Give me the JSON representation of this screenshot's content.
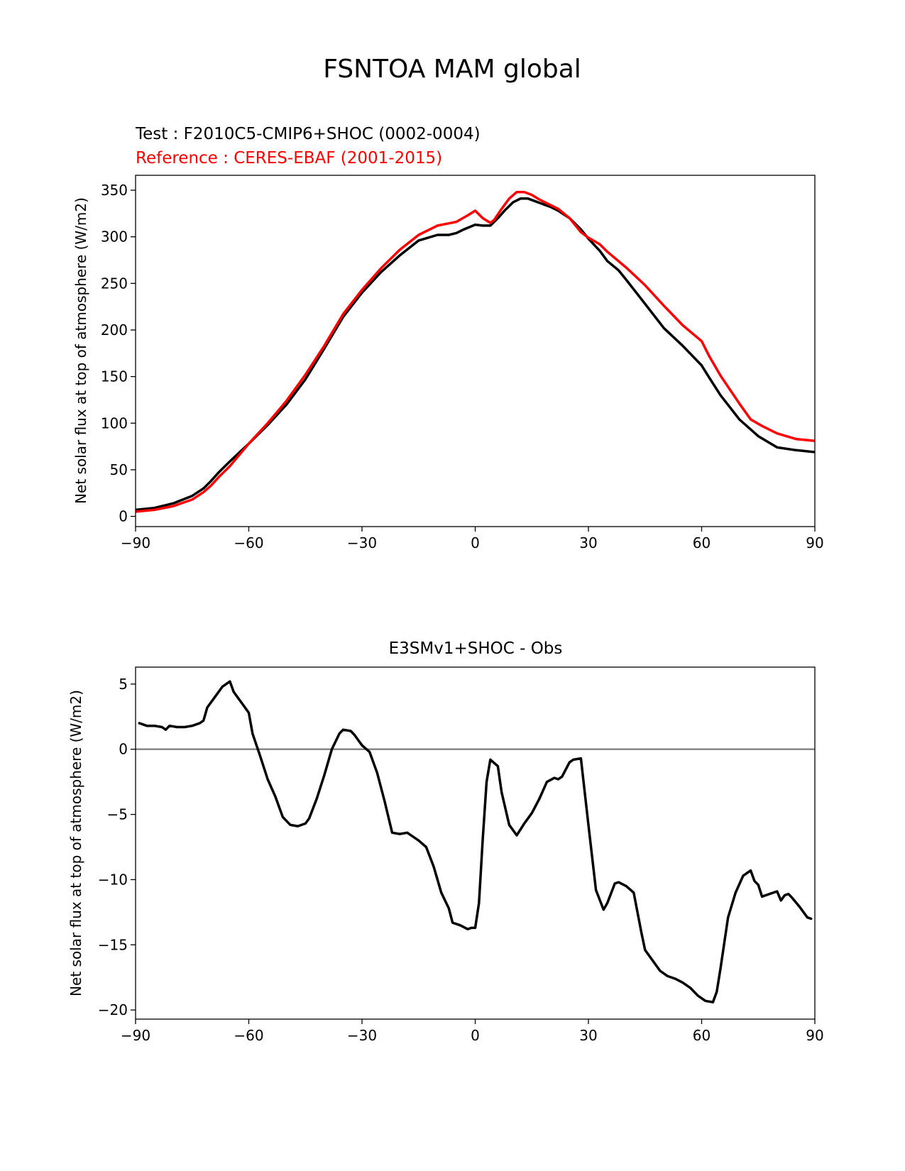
{
  "figure": {
    "title": "FSNTOA MAM global"
  },
  "colors": {
    "test": "#000000",
    "reference": "#ff0000",
    "zero_line": "#808080"
  },
  "chart_data": [
    {
      "type": "line",
      "test_label": "Test : F2010C5-CMIP6+SHOC (0002-0004)",
      "reference_label": "Reference : CERES-EBAF (2001-2015)",
      "xlabel": "",
      "ylabel": "Net solar flux at top of atmosphere (W/m2)",
      "xlim": [
        -90,
        90
      ],
      "ylim": [
        -11,
        366
      ],
      "xticks": [
        -90,
        -60,
        -30,
        0,
        30,
        60,
        90
      ],
      "xtick_labels": [
        "−90",
        "−60",
        "−30",
        "0",
        "30",
        "60",
        "90"
      ],
      "yticks": [
        0,
        50,
        100,
        150,
        200,
        250,
        300,
        350
      ],
      "ytick_labels": [
        "0",
        "50",
        "100",
        "150",
        "200",
        "250",
        "300",
        "350"
      ],
      "grid": false,
      "series": [
        {
          "key": "test",
          "x": [
            -90,
            -85,
            -80,
            -75,
            -72,
            -70,
            -68,
            -65,
            -60,
            -55,
            -50,
            -45,
            -40,
            -35,
            -30,
            -25,
            -20,
            -15,
            -10,
            -7,
            -5,
            -3,
            0,
            2,
            4,
            6,
            8,
            10,
            12,
            14,
            16,
            18,
            20,
            22,
            25,
            28,
            30,
            33,
            35,
            38,
            40,
            45,
            50,
            55,
            60,
            62,
            65,
            70,
            75,
            80,
            85,
            90
          ],
          "values": [
            7,
            9,
            14,
            22,
            30,
            38,
            47,
            59,
            78,
            98,
            120,
            147,
            180,
            214,
            240,
            262,
            280,
            296,
            302,
            302,
            304,
            308,
            313,
            312,
            312,
            320,
            329,
            337,
            341,
            341,
            338,
            335,
            332,
            328,
            320,
            308,
            298,
            285,
            274,
            264,
            254,
            228,
            202,
            183,
            162,
            149,
            130,
            104,
            86,
            74,
            71,
            69
          ]
        },
        {
          "key": "reference",
          "x": [
            -90,
            -85,
            -80,
            -75,
            -72,
            -70,
            -68,
            -65,
            -60,
            -55,
            -50,
            -45,
            -40,
            -35,
            -30,
            -25,
            -20,
            -15,
            -10,
            -5,
            -2,
            0,
            2,
            4,
            5,
            7,
            9,
            11,
            13,
            15,
            17,
            19,
            22,
            25,
            28,
            30,
            33,
            35,
            40,
            45,
            50,
            55,
            60,
            62,
            65,
            70,
            73,
            76,
            80,
            85,
            90
          ],
          "values": [
            5,
            7,
            11,
            18,
            26,
            33,
            42,
            54,
            78,
            100,
            124,
            152,
            183,
            217,
            243,
            266,
            286,
            302,
            312,
            316,
            323,
            328,
            320,
            315,
            318,
            330,
            341,
            348,
            348,
            345,
            340,
            336,
            330,
            320,
            305,
            299,
            292,
            284,
            267,
            248,
            226,
            205,
            188,
            172,
            151,
            121,
            104,
            97,
            89,
            83,
            81
          ]
        }
      ]
    },
    {
      "type": "line",
      "title": "E3SMv1+SHOC - Obs",
      "xlabel": "",
      "ylabel": "Net solar flux at top of atmosphere (W/m2)",
      "xlim": [
        -90,
        90
      ],
      "ylim": [
        -20.7,
        6.3
      ],
      "xticks": [
        -90,
        -60,
        -30,
        0,
        30,
        60,
        90
      ],
      "xtick_labels": [
        "−90",
        "−60",
        "−30",
        "0",
        "30",
        "60",
        "90"
      ],
      "yticks": [
        5,
        0,
        -5,
        -10,
        -15,
        -20
      ],
      "ytick_labels": [
        "5",
        "0",
        "−5",
        "−10",
        "−15",
        "−20"
      ],
      "grid": false,
      "zero_line": 0,
      "series": [
        {
          "key": "diff",
          "x": [
            -89,
            -87,
            -85,
            -83,
            -82,
            -81,
            -79,
            -77,
            -75,
            -73,
            -72,
            -71,
            -69,
            -67,
            -65,
            -64,
            -62,
            -60,
            -59,
            -57,
            -55,
            -53,
            -51,
            -49,
            -47,
            -45,
            -44,
            -42,
            -40,
            -38,
            -36,
            -35,
            -33,
            -32,
            -30,
            -28,
            -26,
            -24,
            -22,
            -20,
            -18,
            -17,
            -15,
            -13,
            -11,
            -9,
            -7,
            -6,
            -4,
            -2,
            -1,
            0,
            1,
            2,
            3,
            4,
            6,
            7,
            9,
            11,
            13,
            15,
            17,
            19,
            21,
            22,
            23,
            25,
            26,
            28,
            30,
            32,
            34,
            35,
            37,
            38,
            40,
            42,
            44,
            45,
            47,
            49,
            51,
            53,
            55,
            57,
            59,
            61,
            63,
            64,
            65,
            67,
            69,
            71,
            73,
            74,
            75,
            76,
            78,
            80,
            81,
            82,
            83,
            84,
            86,
            88,
            89
          ],
          "values": [
            2.0,
            1.8,
            1.8,
            1.7,
            1.5,
            1.8,
            1.7,
            1.7,
            1.8,
            2.0,
            2.2,
            3.2,
            4.0,
            4.8,
            5.2,
            4.4,
            3.6,
            2.8,
            1.2,
            -0.5,
            -2.3,
            -3.6,
            -5.2,
            -5.8,
            -5.9,
            -5.7,
            -5.3,
            -3.8,
            -2.0,
            0.0,
            1.2,
            1.5,
            1.4,
            1.1,
            0.3,
            -0.2,
            -1.8,
            -4.0,
            -6.4,
            -6.5,
            -6.4,
            -6.6,
            -7.0,
            -7.5,
            -9.0,
            -11.0,
            -12.2,
            -13.3,
            -13.5,
            -13.8,
            -13.7,
            -13.7,
            -11.8,
            -6.9,
            -2.5,
            -0.8,
            -1.3,
            -3.3,
            -5.8,
            -6.6,
            -5.7,
            -4.9,
            -3.8,
            -2.5,
            -2.2,
            -2.3,
            -2.1,
            -1.0,
            -0.8,
            -0.7,
            -5.8,
            -10.8,
            -12.3,
            -11.8,
            -10.3,
            -10.2,
            -10.5,
            -11.0,
            -14.0,
            -15.4,
            -16.2,
            -17.0,
            -17.4,
            -17.6,
            -17.9,
            -18.3,
            -18.9,
            -19.3,
            -19.4,
            -18.6,
            -16.8,
            -12.9,
            -11.0,
            -9.7,
            -9.3,
            -10.1,
            -10.4,
            -11.3,
            -11.1,
            -10.9,
            -11.6,
            -11.2,
            -11.1,
            -11.4,
            -12.1,
            -12.9,
            -13.0
          ]
        }
      ]
    }
  ]
}
